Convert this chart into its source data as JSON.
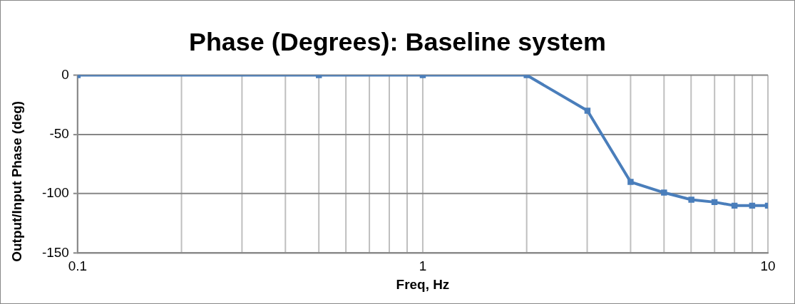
{
  "chart_data": {
    "type": "line",
    "title": "Phase (Degrees): Baseline system",
    "xlabel": "Freq, Hz",
    "ylabel": "Output/Input Phase (deg)",
    "x": [
      0.1,
      0.5,
      1,
      2,
      3,
      4,
      5,
      6,
      7,
      8,
      9,
      10
    ],
    "series": [
      {
        "color": "#4a7ebb",
        "values": [
          0,
          0,
          0,
          0,
          -30,
          -90,
          -99,
          -105,
          -107,
          -110,
          -110,
          -110
        ]
      }
    ],
    "log": "x",
    "xlim": [
      0.1,
      10
    ],
    "xticks": [
      0.1,
      {
        "value": 0.2,
        "label": null
      },
      {
        "value": 0.3,
        "label": null
      },
      {
        "value": 0.4,
        "label": null
      },
      {
        "value": 0.5,
        "label": null
      },
      {
        "value": 0.6,
        "label": null
      },
      {
        "value": 0.7,
        "label": null
      },
      {
        "value": 0.8,
        "label": null
      },
      {
        "value": 0.9,
        "label": null
      },
      1,
      {
        "value": 2,
        "label": null
      },
      {
        "value": 3,
        "label": null
      },
      {
        "value": 4,
        "label": null
      },
      {
        "value": 5,
        "label": null
      },
      {
        "value": 6,
        "label": null
      },
      {
        "value": 7,
        "label": null
      },
      {
        "value": 8,
        "label": null
      },
      {
        "value": 9,
        "label": null
      },
      10
    ],
    "ylim": [
      -150,
      0
    ],
    "yticks": [
      -150,
      -100,
      -50,
      0
    ],
    "grid": true,
    "legend": false,
    "marker": "square",
    "line_style": "solid"
  }
}
